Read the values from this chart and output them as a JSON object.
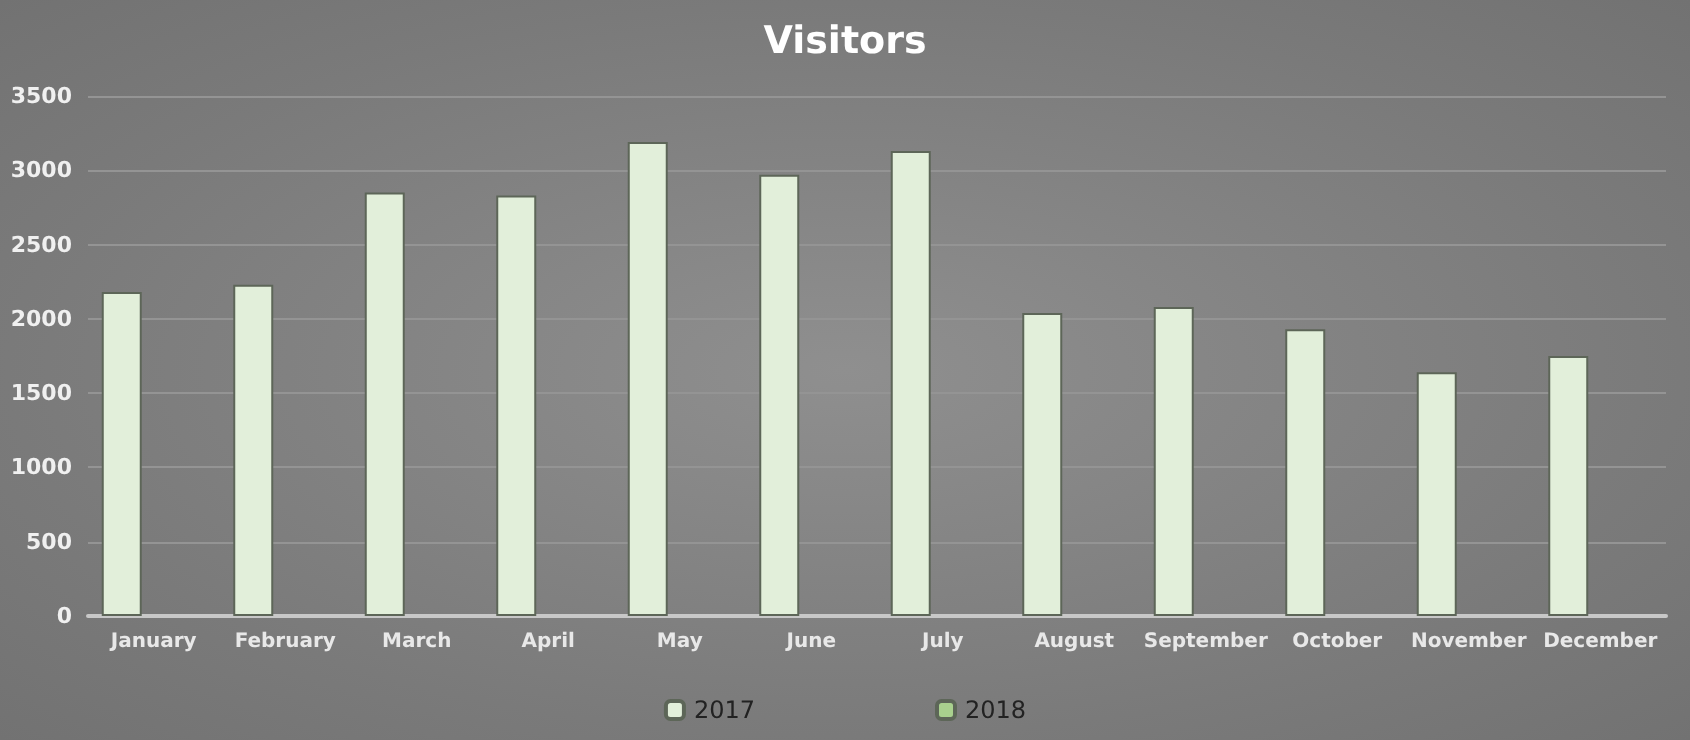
{
  "chart_data": {
    "type": "bar",
    "title": "Visitors",
    "categories": [
      "January",
      "February",
      "March",
      "April",
      "May",
      "June",
      "July",
      "August",
      "September",
      "October",
      "November",
      "December"
    ],
    "series": [
      {
        "name": "2017",
        "color": "#e2efda",
        "values": [
          2180,
          2230,
          2850,
          2830,
          3190,
          2970,
          3130,
          2040,
          2080,
          1930,
          1640,
          1750
        ]
      },
      {
        "name": "2018",
        "color": "#a9d18e",
        "values": [
          null,
          null,
          null,
          null,
          null,
          null,
          null,
          null,
          null,
          null,
          null,
          null
        ]
      }
    ],
    "ylim": [
      0,
      3500
    ],
    "yticks": [
      0,
      500,
      1000,
      1500,
      2000,
      2500,
      3000,
      3500
    ],
    "grid": "y",
    "legend": "bottom"
  }
}
